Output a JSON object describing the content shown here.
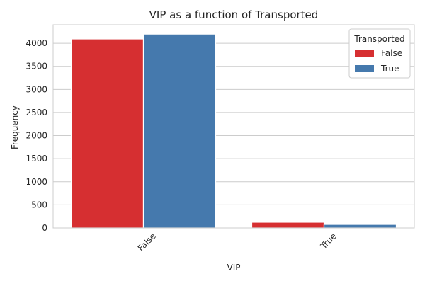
{
  "chart_data": {
    "type": "bar",
    "title": "VIP as a function of Transported",
    "xlabel": "VIP",
    "ylabel": "Frequency",
    "categories": [
      "False",
      "True"
    ],
    "series": [
      {
        "name": "False",
        "values": [
          4093,
          123
        ]
      },
      {
        "name": "True",
        "values": [
          4198,
          76
        ]
      }
    ],
    "ylim": [
      0,
      4400
    ],
    "yticks": [
      0,
      500,
      1000,
      1500,
      2000,
      2500,
      3000,
      3500,
      4000
    ],
    "grid": "horizontal",
    "legend": {
      "title": "Transported",
      "placement": "top-right"
    },
    "colors": [
      "#d62f31",
      "#4579ad"
    ],
    "xtick_rotation": 45
  }
}
